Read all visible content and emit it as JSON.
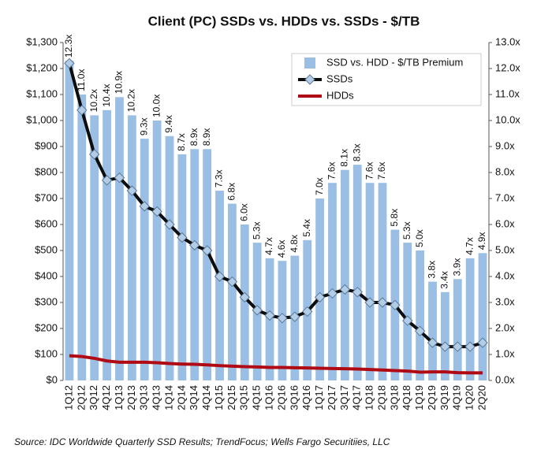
{
  "chart_data": {
    "type": "bar",
    "title": "Client (PC) SSDs vs. HDDs vs. SSDs - $/TB",
    "source": "Source: IDC Worldwide Quarterly SSD Results; TrendFocus; Wells Fargo Securitiies, LLC",
    "categories": [
      "1Q12",
      "2Q12",
      "3Q12",
      "4Q12",
      "1Q13",
      "2Q13",
      "3Q13",
      "4Q13",
      "1Q14",
      "2Q14",
      "3Q14",
      "4Q14",
      "1Q15",
      "2Q15",
      "3Q15",
      "4Q15",
      "1Q16",
      "2Q16",
      "3Q16",
      "4Q16",
      "1Q17",
      "2Q17",
      "3Q17",
      "4Q17",
      "1Q18",
      "2Q18",
      "3Q18",
      "4Q18",
      "1Q19",
      "2Q19",
      "3Q19",
      "4Q19",
      "1Q20",
      "2Q20"
    ],
    "series": [
      {
        "name": "SSD vs. HDD - $/TB Premium",
        "type": "bar",
        "axis": "y2",
        "color": "#9bbfe4",
        "values": [
          12.3,
          11.0,
          10.2,
          10.4,
          10.9,
          10.2,
          9.3,
          10.0,
          9.4,
          8.7,
          8.9,
          8.9,
          7.3,
          6.8,
          6.0,
          5.3,
          4.7,
          4.6,
          4.8,
          5.4,
          7.0,
          7.6,
          8.1,
          8.3,
          7.6,
          7.6,
          5.8,
          5.3,
          5.0,
          3.8,
          3.4,
          3.9,
          4.7,
          4.9
        ],
        "value_labels": [
          "12.3x",
          "11.0x",
          "10.2x",
          "10.4x",
          "10.9x",
          "10.2x",
          "9.3x",
          "10.0x",
          "9.4x",
          "8.7x",
          "8.9x",
          "8.9x",
          "7.3x",
          "6.8x",
          "6.0x",
          "5.3x",
          "4.7x",
          "4.6x",
          "4.8x",
          "5.4x",
          "7.0x",
          "7.6x",
          "8.1x",
          "8.3x",
          "7.6x",
          "7.6x",
          "5.8x",
          "5.3x",
          "5.0x",
          "3.8x",
          "3.4x",
          "3.9x",
          "4.7x",
          "4.9x"
        ]
      },
      {
        "name": "SSDs",
        "type": "line",
        "color": "#0d0d0d",
        "marker": "diamond",
        "marker_color": "#b4cde6",
        "values": [
          1220,
          1040,
          870,
          770,
          780,
          730,
          670,
          650,
          600,
          550,
          520,
          500,
          400,
          380,
          320,
          270,
          250,
          240,
          245,
          265,
          320,
          335,
          350,
          340,
          300,
          300,
          290,
          230,
          190,
          145,
          130,
          130,
          130,
          145
        ]
      },
      {
        "name": "HDDs",
        "type": "line",
        "color": "#b00a14",
        "values": [
          95,
          92,
          85,
          75,
          70,
          70,
          70,
          68,
          65,
          63,
          62,
          60,
          57,
          55,
          53,
          52,
          50,
          50,
          49,
          48,
          47,
          46,
          45,
          44,
          42,
          40,
          38,
          36,
          32,
          33,
          33,
          30,
          29,
          29
        ]
      }
    ],
    "ylim": [
      0,
      1300
    ],
    "yticks": [
      {
        "value": 0,
        "label": "$0"
      },
      {
        "value": 100,
        "label": "$100"
      },
      {
        "value": 200,
        "label": "$200"
      },
      {
        "value": 300,
        "label": "$300"
      },
      {
        "value": 400,
        "label": "$400"
      },
      {
        "value": 500,
        "label": "$500"
      },
      {
        "value": 600,
        "label": "$600"
      },
      {
        "value": 700,
        "label": "$700"
      },
      {
        "value": 800,
        "label": "$800"
      },
      {
        "value": 900,
        "label": "$900"
      },
      {
        "value": 1000,
        "label": "$1,000"
      },
      {
        "value": 1100,
        "label": "$1,100"
      },
      {
        "value": 1200,
        "label": "$1,200"
      },
      {
        "value": 1300,
        "label": "$1,300"
      }
    ],
    "y2lim": [
      0,
      13
    ],
    "y2ticks": [
      {
        "value": 0,
        "label": "0.0x"
      },
      {
        "value": 1,
        "label": "1.0x"
      },
      {
        "value": 2,
        "label": "2.0x"
      },
      {
        "value": 3,
        "label": "3.0x"
      },
      {
        "value": 4,
        "label": "4.0x"
      },
      {
        "value": 5,
        "label": "5.0x"
      },
      {
        "value": 6,
        "label": "6.0x"
      },
      {
        "value": 7,
        "label": "7.0x"
      },
      {
        "value": 8,
        "label": "8.0x"
      },
      {
        "value": 9,
        "label": "9.0x"
      },
      {
        "value": 10,
        "label": "10.0x"
      },
      {
        "value": 11,
        "label": "11.0x"
      },
      {
        "value": 12,
        "label": "12.0x"
      },
      {
        "value": 13,
        "label": "13.0x"
      }
    ],
    "grid": false,
    "legend": "top-right"
  }
}
